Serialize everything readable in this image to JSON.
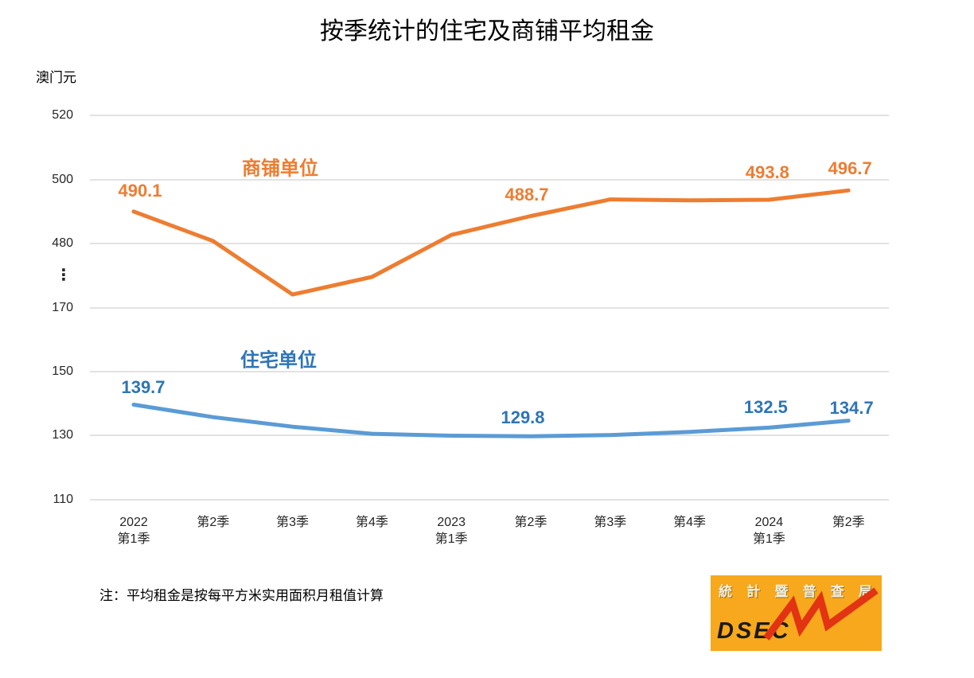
{
  "title": "按季统计的住宅及商铺平均租金",
  "y_axis_unit": "澳门元",
  "note": "注：平均租金是按每平方米实用面积月租值计算",
  "chart_data": {
    "type": "line",
    "title": "按季统计的住宅及商铺平均租金",
    "ylabel": "澳门元",
    "grid": "horizontal",
    "broken_y_axis": true,
    "break_symbol": "⋮",
    "upper_axis_ticks": [
      520,
      500,
      480
    ],
    "lower_axis_ticks": [
      170,
      150,
      130,
      110
    ],
    "categories": [
      {
        "lines": [
          "2022",
          "第1季"
        ]
      },
      {
        "lines": [
          "第2季"
        ]
      },
      {
        "lines": [
          "第3季"
        ]
      },
      {
        "lines": [
          "第4季"
        ]
      },
      {
        "lines": [
          "2023",
          "第1季"
        ]
      },
      {
        "lines": [
          "第2季"
        ]
      },
      {
        "lines": [
          "第3季"
        ]
      },
      {
        "lines": [
          "第4季"
        ]
      },
      {
        "lines": [
          "2024",
          "第1季"
        ]
      },
      {
        "lines": [
          "第2季"
        ]
      }
    ],
    "series": [
      {
        "name": "商铺单位",
        "scale": "upper",
        "line_color": "#ED7D31",
        "label_color": "#ED7D31",
        "values": [
          490.1,
          480.9,
          464.2,
          469.7,
          482.8,
          488.7,
          493.9,
          493.6,
          493.8,
          496.7
        ],
        "point_labels": [
          {
            "i": 0,
            "text": "490.1",
            "dx": 8,
            "dy": -26
          },
          {
            "i": 5,
            "text": "488.7",
            "dx": -5,
            "dy": -26
          },
          {
            "i": 8,
            "text": "493.8",
            "dx": -2,
            "dy": -34
          },
          {
            "i": 9,
            "text": "496.7",
            "dx": 2,
            "dy": -27
          }
        ]
      },
      {
        "name": "住宅单位",
        "scale": "lower",
        "line_color": "#5B9BD5",
        "label_color": "#2E75B6",
        "values": [
          139.7,
          135.8,
          132.8,
          130.6,
          130.0,
          129.8,
          130.2,
          131.2,
          132.5,
          134.7
        ],
        "point_labels": [
          {
            "i": 0,
            "text": "139.7",
            "dx": 12,
            "dy": -21
          },
          {
            "i": 5,
            "text": "129.8",
            "dx": -10,
            "dy": -23
          },
          {
            "i": 8,
            "text": "132.5",
            "dx": -4,
            "dy": -25
          },
          {
            "i": 9,
            "text": "134.7",
            "dx": 4,
            "dy": -16
          }
        ]
      }
    ],
    "legend_position": "above-series-left"
  },
  "colors": {
    "gridline": "#D9D9D9",
    "tick_text": "#262626",
    "shop_accent": "#ED7D31",
    "residential_line": "#5B9BD5",
    "residential_accent": "#2E75B6"
  },
  "logo": {
    "agency_chars": [
      "統",
      "計",
      "暨",
      "普",
      "查",
      "局"
    ],
    "acronym": "DSEC",
    "background": "#F7A81C",
    "zigzag_color": "#E23312",
    "text_color": "#1A1A1A",
    "chars_color": "#F2F0E4"
  }
}
